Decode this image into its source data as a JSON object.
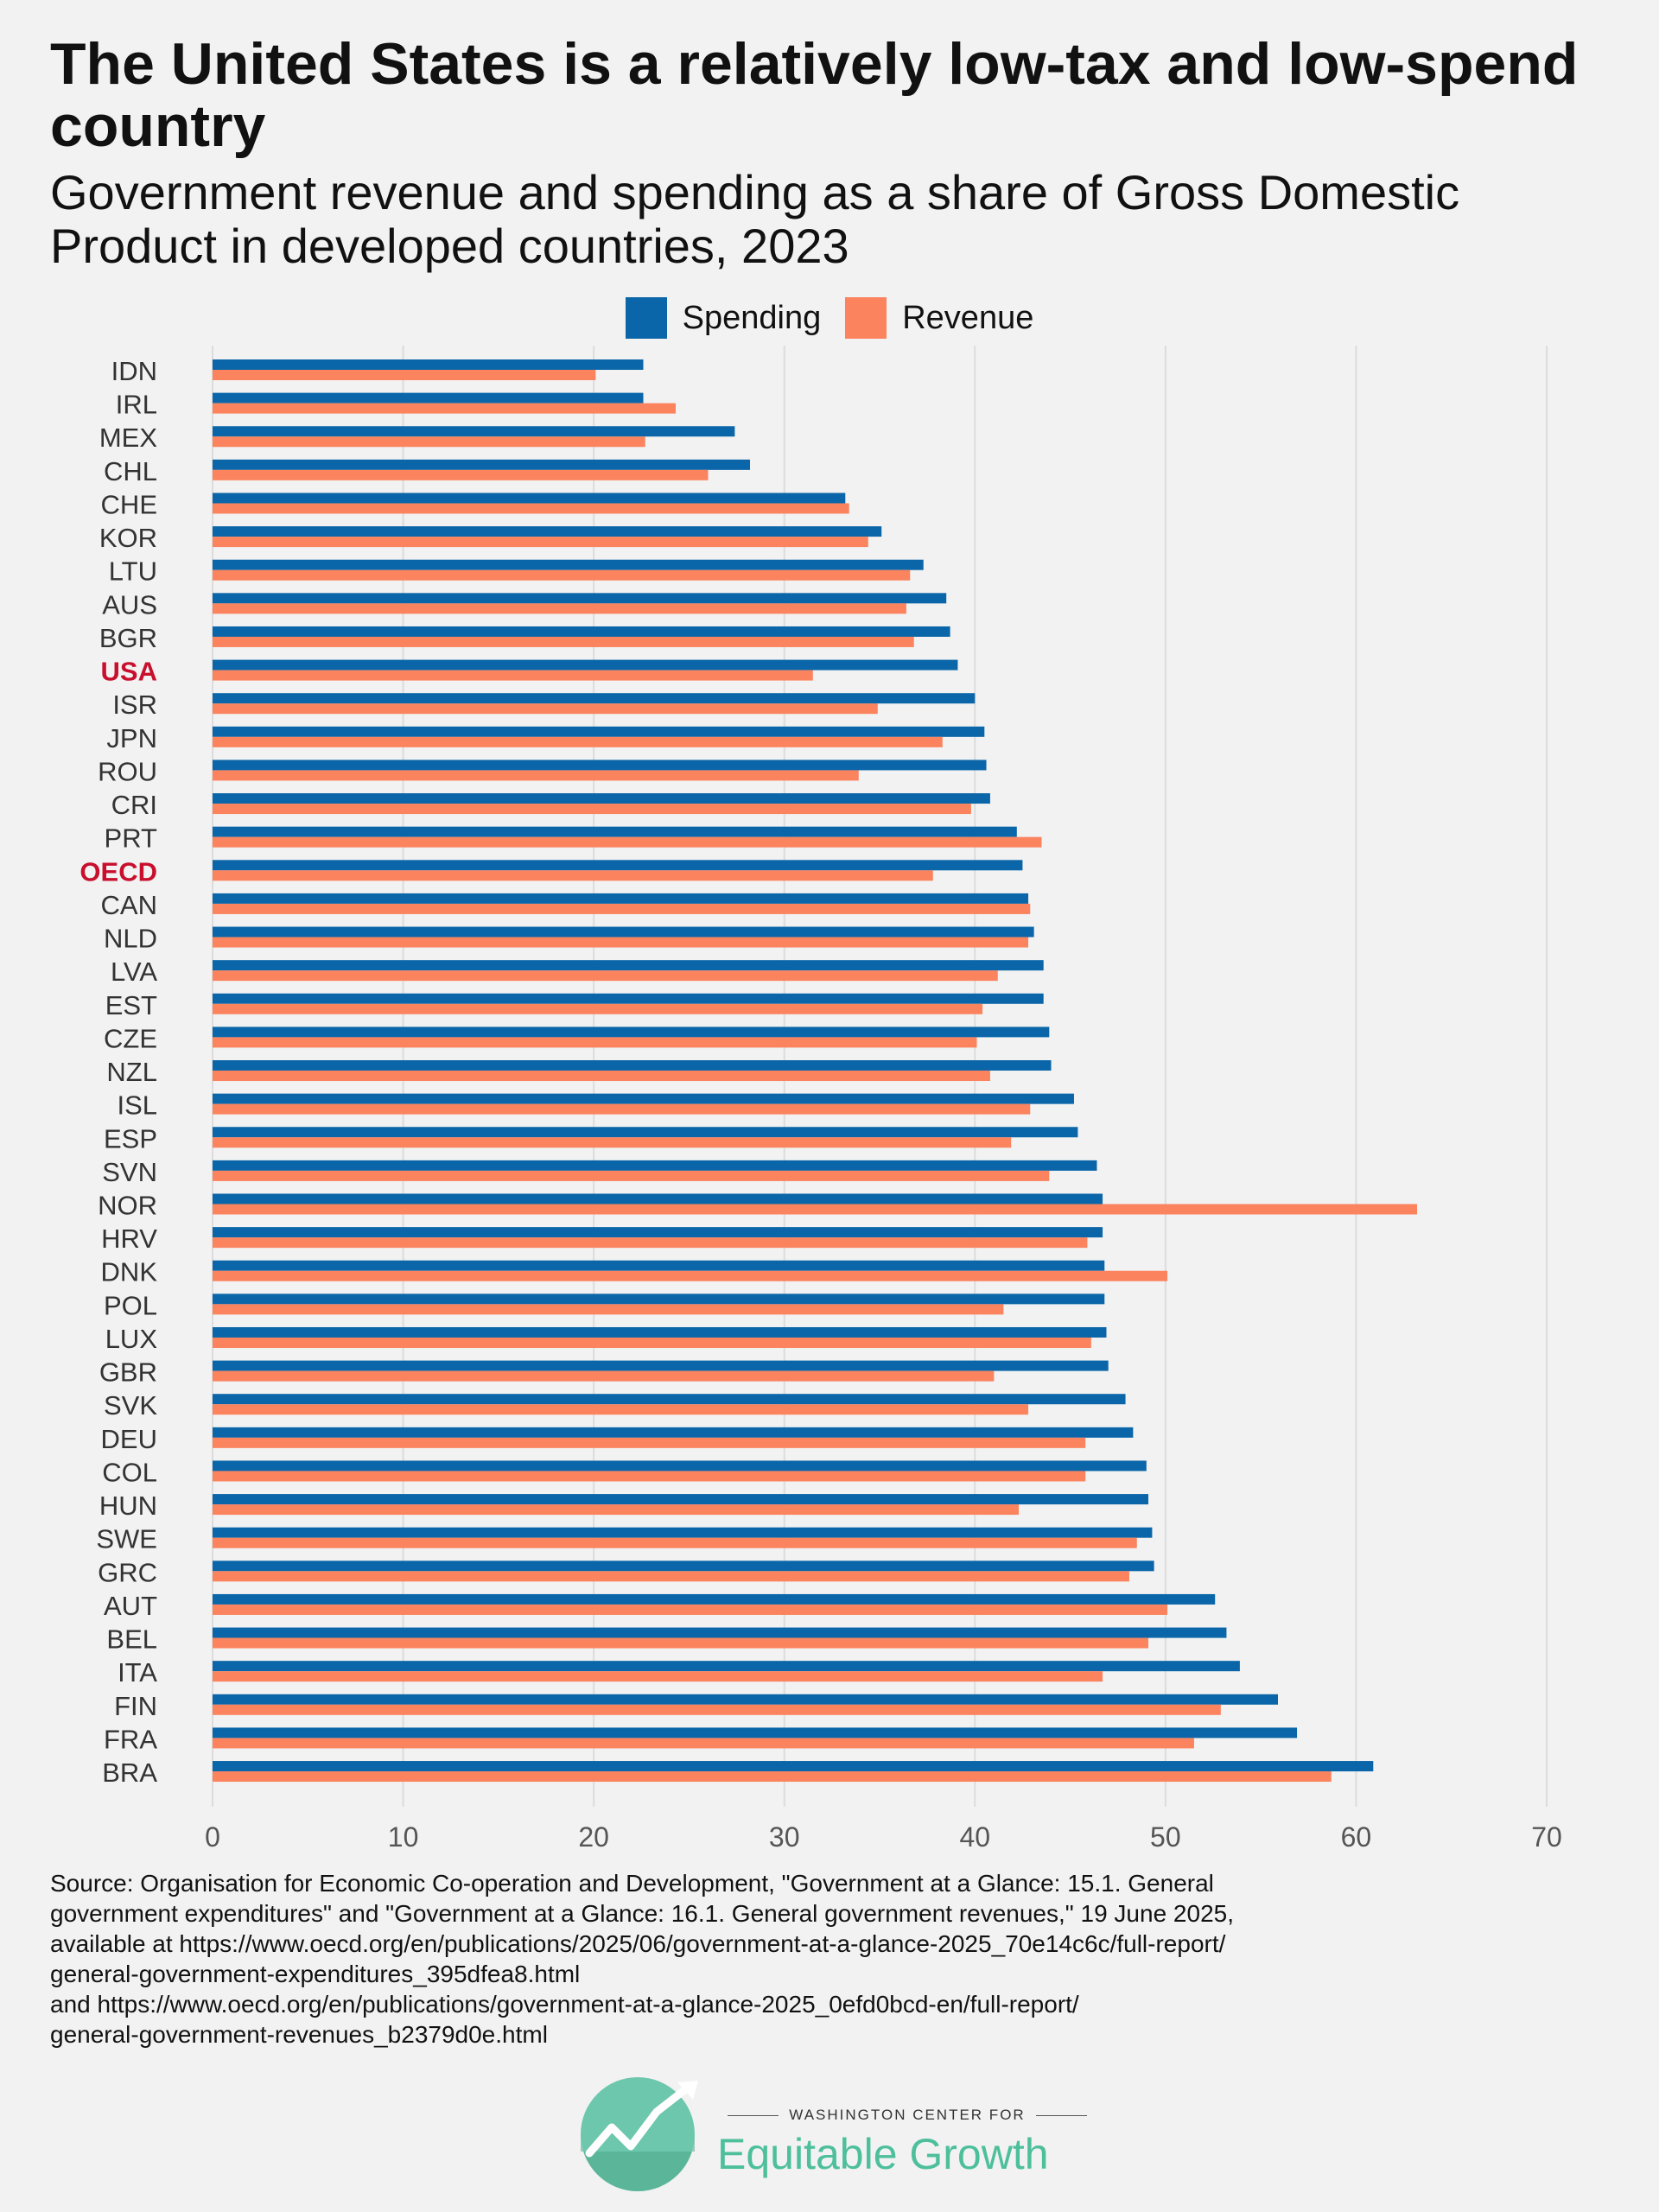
{
  "title": "The United States is a relatively low-tax and low-spend country",
  "subtitle": "Government revenue and spending as a share of Gross Domestic Product in developed countries, 2023",
  "colors": {
    "spending": "#0a66a8",
    "revenue": "#fb835e",
    "highlight_label": "#c8102e",
    "grid": "#dcdcdc"
  },
  "chart_data": {
    "type": "bar",
    "orientation": "horizontal",
    "categories": [
      "IDN",
      "IRL",
      "MEX",
      "CHL",
      "CHE",
      "KOR",
      "LTU",
      "AUS",
      "BGR",
      "USA",
      "ISR",
      "JPN",
      "ROU",
      "CRI",
      "PRT",
      "OECD",
      "CAN",
      "NLD",
      "LVA",
      "EST",
      "CZE",
      "NZL",
      "ISL",
      "ESP",
      "SVN",
      "NOR",
      "HRV",
      "DNK",
      "POL",
      "LUX",
      "GBR",
      "SVK",
      "DEU",
      "COL",
      "HUN",
      "SWE",
      "GRC",
      "AUT",
      "BEL",
      "ITA",
      "FIN",
      "FRA",
      "BRA"
    ],
    "highlighted": [
      "USA",
      "OECD"
    ],
    "series": [
      {
        "name": "Spending",
        "color": "#0a66a8",
        "values": [
          22.6,
          22.6,
          27.4,
          28.2,
          33.2,
          35.1,
          37.3,
          38.5,
          38.7,
          39.1,
          40.0,
          40.5,
          40.6,
          40.8,
          42.2,
          42.5,
          42.8,
          43.1,
          43.6,
          43.6,
          43.9,
          44.0,
          45.2,
          45.4,
          46.4,
          46.7,
          46.7,
          46.8,
          46.8,
          46.9,
          47.0,
          47.9,
          48.3,
          49.0,
          49.1,
          49.3,
          49.4,
          52.6,
          53.2,
          53.9,
          55.9,
          56.9,
          60.9
        ]
      },
      {
        "name": "Revenue",
        "color": "#fb835e",
        "values": [
          20.1,
          24.3,
          22.7,
          26.0,
          33.4,
          34.4,
          36.6,
          36.4,
          36.8,
          31.5,
          34.9,
          38.3,
          33.9,
          39.8,
          43.5,
          37.8,
          42.9,
          42.8,
          41.2,
          40.4,
          40.1,
          40.8,
          42.9,
          41.9,
          43.9,
          63.2,
          45.9,
          50.1,
          41.5,
          46.1,
          41.0,
          42.8,
          45.8,
          45.8,
          42.3,
          48.5,
          48.1,
          50.1,
          49.1,
          46.7,
          52.9,
          51.5,
          58.7
        ]
      }
    ],
    "x_ticks": [
      "0",
      "10",
      "20",
      "30",
      "40",
      "50",
      "60",
      "70"
    ],
    "xlim": [
      0,
      70
    ],
    "grid": "vertical",
    "legend_position": "top"
  },
  "source": {
    "lines": [
      "Source: Organisation for Economic Co-operation and Development, \"Government at a Glance: 15.1. General",
      "government expenditures\" and \"Government at a Glance: 16.1. General government revenues,\" 19 June 2025,",
      "available at https://www.oecd.org/en/publications/2025/06/government-at-a-glance-2025_70e14c6c/full-report/",
      "general-government-expenditures_395dfea8.html",
      "and https://www.oecd.org/en/publications/government-at-a-glance-2025_0efd0bcd-en/full-report/",
      "general-government-revenues_b2379d0e.html"
    ]
  },
  "logo": {
    "small": "WASHINGTON CENTER FOR",
    "big": "Equitable Growth"
  }
}
